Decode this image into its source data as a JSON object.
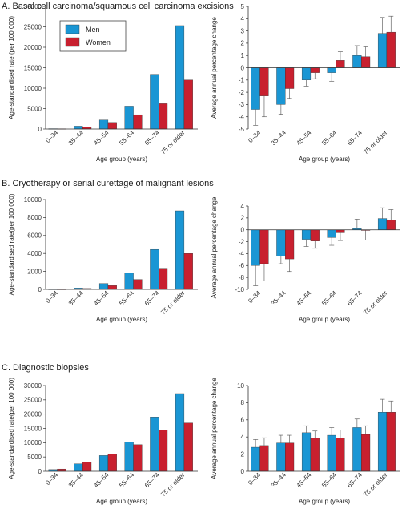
{
  "colors": {
    "men": "#1a96d4",
    "women": "#c8202f",
    "axis": "#333333",
    "error": "#666666"
  },
  "legend": {
    "men": "Men",
    "women": "Women"
  },
  "sections": [
    {
      "title": "A. Basal cell carcinoma/squamous cell carcinoma excisions"
    },
    {
      "title": "B. Cryotherapy or serial curettage of malignant lesions"
    },
    {
      "title": "C. Diagnostic biopsies"
    }
  ],
  "chart_data": [
    {
      "type": "bar",
      "section": "A",
      "panel": "rate",
      "categories": [
        "0–34",
        "35–44",
        "45–54",
        "55–64",
        "65–74",
        "75 or older"
      ],
      "series": [
        {
          "name": "Men",
          "values": [
            80,
            700,
            2200,
            5600,
            13400,
            25300
          ]
        },
        {
          "name": "Women",
          "values": [
            60,
            500,
            1600,
            3500,
            6200,
            12000
          ]
        }
      ],
      "xlabel": "Age group (years)",
      "ylabel": "Age-standardised rate (per 100 000)",
      "ylim": [
        0,
        30000
      ],
      "yticks": [
        0,
        5000,
        10000,
        15000,
        20000,
        25000,
        30000
      ]
    },
    {
      "type": "bar",
      "section": "A",
      "panel": "change",
      "categories": [
        "0–34",
        "35–44",
        "45–54",
        "55–64",
        "65–74",
        "75 or older"
      ],
      "series": [
        {
          "name": "Men",
          "values": [
            -3.4,
            -3.0,
            -1.0,
            -0.4,
            1.0,
            2.8
          ],
          "errors": [
            1.3,
            0.8,
            0.5,
            0.7,
            0.8,
            1.3
          ]
        },
        {
          "name": "Women",
          "values": [
            -2.3,
            -1.7,
            -0.4,
            0.6,
            0.9,
            2.9
          ],
          "errors": [
            1.7,
            0.8,
            0.5,
            0.7,
            0.8,
            1.3
          ]
        }
      ],
      "xlabel": "Age group (years)",
      "ylabel": "Average annual percentage change",
      "ylim": [
        -5,
        5
      ],
      "yticks": [
        -5,
        -4,
        -3,
        -2,
        -1,
        0,
        1,
        2,
        3,
        4,
        5
      ]
    },
    {
      "type": "bar",
      "section": "B",
      "panel": "rate",
      "categories": [
        "0–34",
        "35–44",
        "45–54",
        "55–64",
        "65–74",
        "75 or older"
      ],
      "series": [
        {
          "name": "Men",
          "values": [
            20,
            150,
            650,
            1800,
            4450,
            8750
          ]
        },
        {
          "name": "Women",
          "values": [
            15,
            100,
            420,
            1100,
            2350,
            4000
          ]
        }
      ],
      "xlabel": "Age group (years)",
      "ylabel": "Age-standardised rate(per 100 000)",
      "ylim": [
        0,
        10000
      ],
      "yticks": [
        0,
        2000,
        4000,
        6000,
        8000,
        10000
      ]
    },
    {
      "type": "bar",
      "section": "B",
      "panel": "change",
      "categories": [
        "0–34",
        "35–44",
        "45–54",
        "55–64",
        "65–74",
        "75 or older"
      ],
      "series": [
        {
          "name": "Men",
          "values": [
            -6.0,
            -4.4,
            -1.6,
            -1.3,
            0.2,
            1.9
          ],
          "errors": [
            3.4,
            1.3,
            1.2,
            1.3,
            1.6,
            1.8
          ]
        },
        {
          "name": "Women",
          "values": [
            -5.7,
            -4.9,
            -1.9,
            -0.5,
            -0.1,
            1.6
          ],
          "errors": [
            2.9,
            2.1,
            1.2,
            1.3,
            1.6,
            1.8
          ]
        }
      ],
      "xlabel": "Age group (years)",
      "ylabel": "Average annual percentage change",
      "ylim": [
        -10,
        4
      ],
      "yticks": [
        -10,
        -8,
        -6,
        -4,
        -2,
        0,
        2,
        4
      ]
    },
    {
      "type": "bar",
      "section": "C",
      "panel": "rate",
      "categories": [
        "0–34",
        "35–44",
        "45–54",
        "55–64",
        "65–74",
        "75 or older"
      ],
      "series": [
        {
          "name": "Men",
          "values": [
            600,
            2600,
            5500,
            10200,
            19000,
            27200
          ]
        },
        {
          "name": "Women",
          "values": [
            800,
            3300,
            6000,
            9300,
            14500,
            16900
          ]
        }
      ],
      "xlabel": "Age group (years)",
      "ylabel": "Age-standardised rate(per 100 000)",
      "ylim": [
        0,
        30000
      ],
      "yticks": [
        0,
        5000,
        10000,
        15000,
        20000,
        25000,
        30000
      ]
    },
    {
      "type": "bar",
      "section": "C",
      "panel": "change",
      "categories": [
        "0–34",
        "35–44",
        "45–54",
        "55–64",
        "65–74",
        "75 or older"
      ],
      "series": [
        {
          "name": "Men",
          "values": [
            2.8,
            3.3,
            4.5,
            4.2,
            5.1,
            6.9
          ],
          "errors": [
            0.9,
            0.9,
            0.8,
            0.9,
            1.0,
            1.5
          ]
        },
        {
          "name": "Women",
          "values": [
            3.0,
            3.3,
            3.9,
            3.9,
            4.3,
            6.9
          ],
          "errors": [
            0.9,
            0.9,
            0.8,
            0.9,
            1.0,
            1.3
          ]
        }
      ],
      "xlabel": "Age group (years)",
      "ylabel": "Average annual percentage change",
      "ylim": [
        0,
        10
      ],
      "yticks": [
        0,
        2,
        4,
        6,
        8,
        10
      ]
    }
  ]
}
